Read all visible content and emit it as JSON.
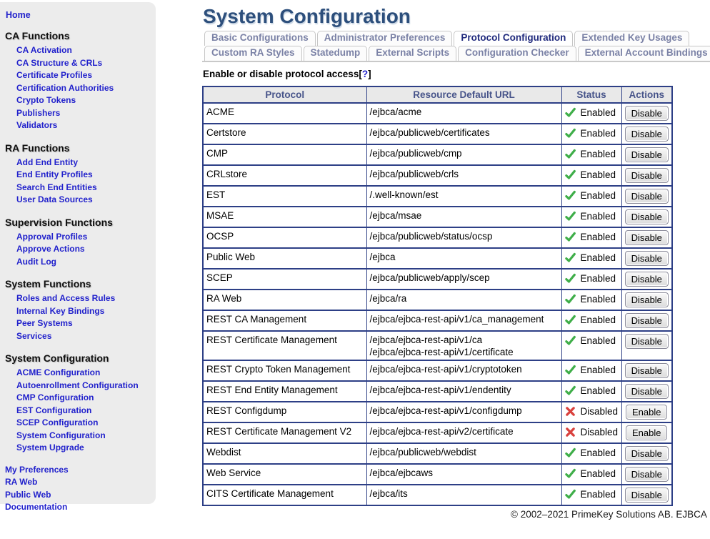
{
  "colors": {
    "link_blue": "#2222cc",
    "title_blue": "#2d4f7c",
    "tab_active": "#202a7d",
    "tab_inactive": "#7b82a6",
    "table_border": "#2d3f86",
    "enabled_green": "#3fae49",
    "disabled_red": "#d9413d"
  },
  "sidebar": {
    "home": "Home",
    "sections": [
      {
        "title": "CA Functions",
        "items": [
          "CA Activation",
          "CA Structure & CRLs",
          "Certificate Profiles",
          "Certification Authorities",
          "Crypto Tokens",
          "Publishers",
          "Validators"
        ]
      },
      {
        "title": "RA Functions",
        "items": [
          "Add End Entity",
          "End Entity Profiles",
          "Search End Entities",
          "User Data Sources"
        ]
      },
      {
        "title": "Supervision Functions",
        "items": [
          "Approval Profiles",
          "Approve Actions",
          "Audit Log"
        ]
      },
      {
        "title": "System Functions",
        "items": [
          "Roles and Access Rules",
          "Internal Key Bindings",
          "Peer Systems",
          "Services"
        ]
      },
      {
        "title": "System Configuration",
        "items": [
          "ACME Configuration",
          "Autoenrollment Configuration",
          "CMP Configuration",
          "EST Configuration",
          "SCEP Configuration",
          "System Configuration",
          "System Upgrade"
        ]
      }
    ],
    "footer_links": [
      "My Preferences",
      "RA Web",
      "Public Web",
      "Documentation"
    ]
  },
  "header": {
    "title": "System Configuration"
  },
  "tabs": {
    "row1": [
      {
        "label": "Basic Configurations",
        "active": false
      },
      {
        "label": "Administrator Preferences",
        "active": false
      },
      {
        "label": "Protocol Configuration",
        "active": true
      },
      {
        "label": "Extended Key Usages",
        "active": false
      }
    ],
    "row2": [
      {
        "label": "Custom RA Styles",
        "active": false
      },
      {
        "label": "Statedump",
        "active": false
      },
      {
        "label": "External Scripts",
        "active": false
      },
      {
        "label": "Configuration Checker",
        "active": false
      },
      {
        "label": "External Account Bindings",
        "active": false
      }
    ]
  },
  "help": {
    "prefix": "Enable or disable protocol access[",
    "link": "?",
    "suffix": "]"
  },
  "table": {
    "headers": [
      "Protocol",
      "Resource Default URL",
      "Status",
      "Actions"
    ],
    "status_icons": {
      "enabled": "check-icon",
      "disabled": "cross-icon"
    },
    "rows": [
      {
        "protocol": "ACME",
        "urls": [
          "/ejbca/acme"
        ],
        "status": "Enabled",
        "enabled": true,
        "action": "Disable"
      },
      {
        "protocol": "Certstore",
        "urls": [
          "/ejbca/publicweb/certificates"
        ],
        "status": "Enabled",
        "enabled": true,
        "action": "Disable"
      },
      {
        "protocol": "CMP",
        "urls": [
          "/ejbca/publicweb/cmp"
        ],
        "status": "Enabled",
        "enabled": true,
        "action": "Disable"
      },
      {
        "protocol": "CRLstore",
        "urls": [
          "/ejbca/publicweb/crls"
        ],
        "status": "Enabled",
        "enabled": true,
        "action": "Disable"
      },
      {
        "protocol": "EST",
        "urls": [
          "/.well-known/est"
        ],
        "status": "Enabled",
        "enabled": true,
        "action": "Disable"
      },
      {
        "protocol": "MSAE",
        "urls": [
          "/ejbca/msae"
        ],
        "status": "Enabled",
        "enabled": true,
        "action": "Disable"
      },
      {
        "protocol": "OCSP",
        "urls": [
          "/ejbca/publicweb/status/ocsp"
        ],
        "status": "Enabled",
        "enabled": true,
        "action": "Disable"
      },
      {
        "protocol": "Public Web",
        "urls": [
          "/ejbca"
        ],
        "status": "Enabled",
        "enabled": true,
        "action": "Disable"
      },
      {
        "protocol": "SCEP",
        "urls": [
          "/ejbca/publicweb/apply/scep"
        ],
        "status": "Enabled",
        "enabled": true,
        "action": "Disable"
      },
      {
        "protocol": "RA Web",
        "urls": [
          "/ejbca/ra"
        ],
        "status": "Enabled",
        "enabled": true,
        "action": "Disable"
      },
      {
        "protocol": "REST CA Management",
        "urls": [
          "/ejbca/ejbca-rest-api/v1/ca_management"
        ],
        "status": "Enabled",
        "enabled": true,
        "action": "Disable"
      },
      {
        "protocol": "REST Certificate Management",
        "urls": [
          "/ejbca/ejbca-rest-api/v1/ca",
          "/ejbca/ejbca-rest-api/v1/certificate"
        ],
        "status": "Enabled",
        "enabled": true,
        "action": "Disable"
      },
      {
        "protocol": "REST Crypto Token Management",
        "urls": [
          "/ejbca/ejbca-rest-api/v1/cryptotoken"
        ],
        "status": "Enabled",
        "enabled": true,
        "action": "Disable"
      },
      {
        "protocol": "REST End Entity Management",
        "urls": [
          "/ejbca/ejbca-rest-api/v1/endentity"
        ],
        "status": "Enabled",
        "enabled": true,
        "action": "Disable"
      },
      {
        "protocol": "REST Configdump",
        "urls": [
          "/ejbca/ejbca-rest-api/v1/configdump"
        ],
        "status": "Disabled",
        "enabled": false,
        "action": "Enable"
      },
      {
        "protocol": "REST Certificate Management V2",
        "urls": [
          "/ejbca/ejbca-rest-api/v2/certificate"
        ],
        "status": "Disabled",
        "enabled": false,
        "action": "Enable"
      },
      {
        "protocol": "Webdist",
        "urls": [
          "/ejbca/publicweb/webdist"
        ],
        "status": "Enabled",
        "enabled": true,
        "action": "Disable"
      },
      {
        "protocol": "Web Service",
        "urls": [
          "/ejbca/ejbcaws"
        ],
        "status": "Enabled",
        "enabled": true,
        "action": "Disable"
      },
      {
        "protocol": "CITS Certificate Management",
        "urls": [
          "/ejbca/its"
        ],
        "status": "Enabled",
        "enabled": true,
        "action": "Disable"
      }
    ]
  },
  "footer": {
    "copyright": "© 2002–2021 PrimeKey Solutions AB. EJBCA"
  }
}
